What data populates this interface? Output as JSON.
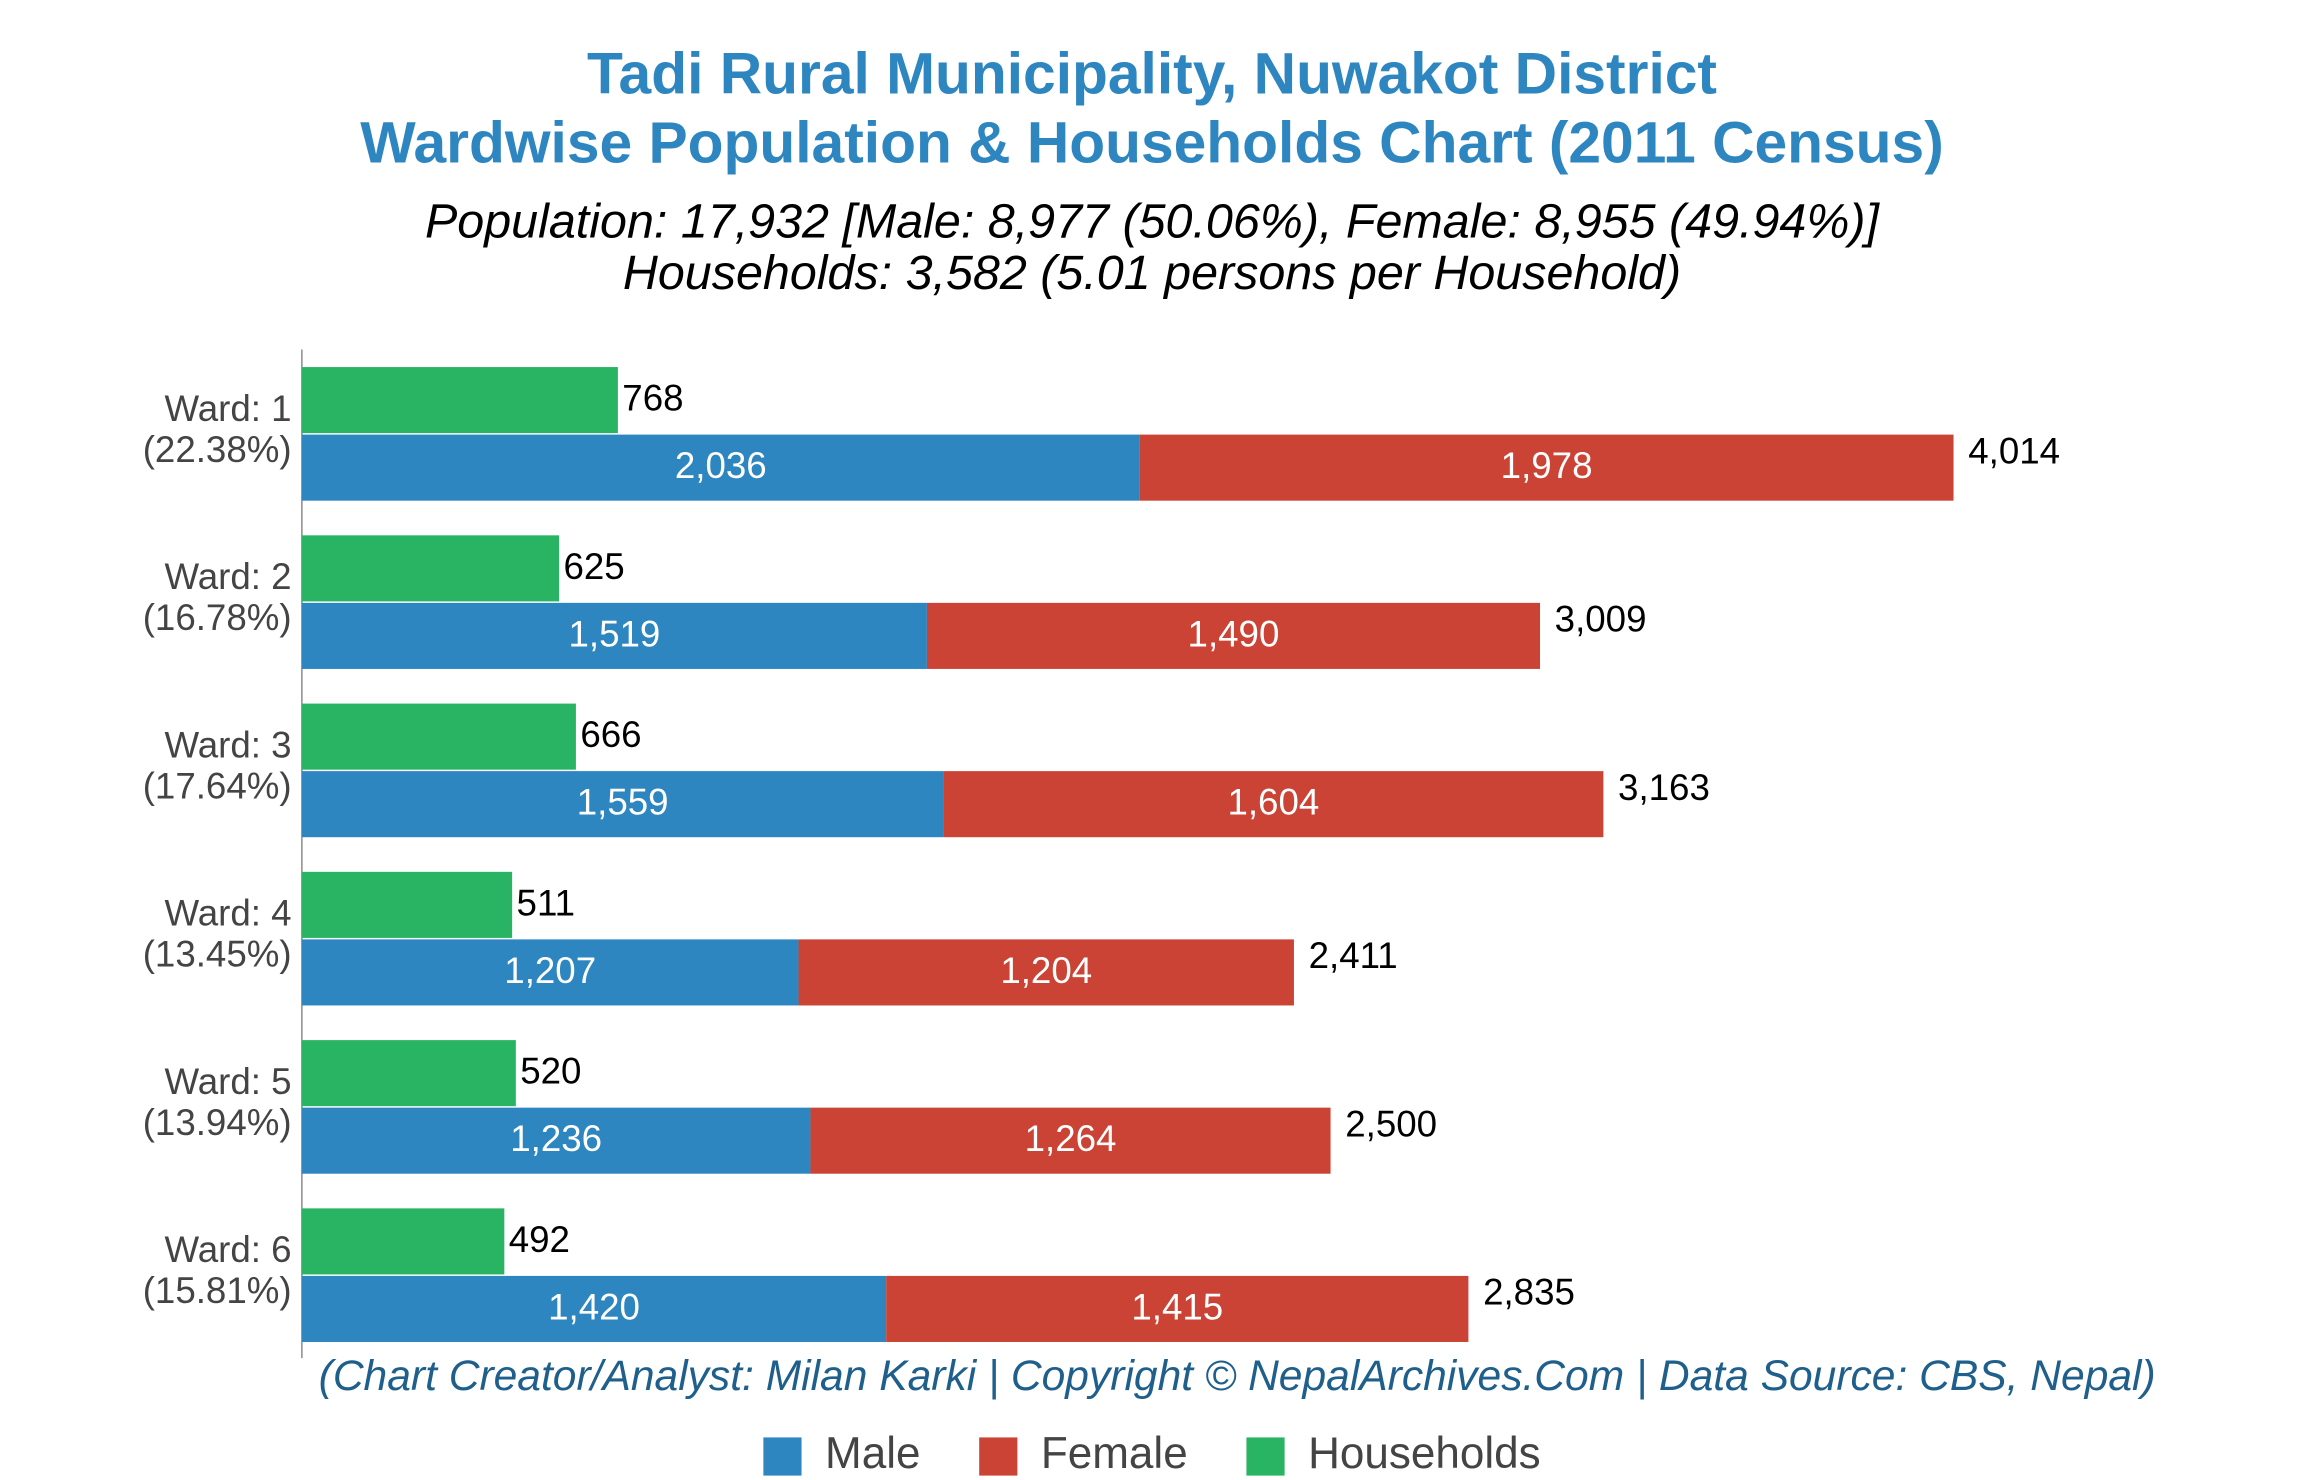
{
  "chart_data": {
    "type": "bar",
    "orientation": "horizontal",
    "title": [
      "Tadi Rural Municipality, Nuwakot District",
      "Wardwise Population & Households Chart (2011 Census)"
    ],
    "subtitle": [
      "Population: 17,932 [Male: 8,977 (50.06%), Female: 8,955 (49.94%)]",
      "Households: 3,582 (5.01 persons per Household)"
    ],
    "note": "(Chart Creator/Analyst: Milan Karki | Copyright © NepalArchives.Com | Data Source: CBS, Nepal)",
    "categories": [
      "Ward: 1",
      "Ward: 2",
      "Ward: 3",
      "Ward: 4",
      "Ward: 5",
      "Ward: 6"
    ],
    "category_shares": [
      22.38,
      16.78,
      17.64,
      13.45,
      13.94,
      15.81
    ],
    "category_share_labels": [
      "(22.38%)",
      "(16.78%)",
      "(17.64%)",
      "(13.45%)",
      "(13.94%)",
      "(15.81%)"
    ],
    "series": [
      {
        "name": "Male",
        "color": "#2e86c1",
        "stack": "population",
        "values": [
          2036,
          1519,
          1559,
          1207,
          1236,
          1420
        ],
        "value_labels": [
          "2,036",
          "1,519",
          "1,559",
          "1,207",
          "1,236",
          "1,420"
        ]
      },
      {
        "name": "Female",
        "color": "#cb4335",
        "stack": "population",
        "values": [
          1978,
          1490,
          1604,
          1204,
          1264,
          1415
        ],
        "value_labels": [
          "1,978",
          "1,490",
          "1,604",
          "1,204",
          "1,264",
          "1,415"
        ]
      },
      {
        "name": "Households",
        "color": "#28b463",
        "stack": "households",
        "values": [
          768,
          625,
          666,
          511,
          520,
          492
        ]
      }
    ],
    "totals": {
      "values": [
        4014,
        3009,
        3163,
        2411,
        2500,
        2835
      ],
      "value_labels": [
        "4,014",
        "3,009",
        "3,163",
        "2,411",
        "2,500",
        "2,835"
      ]
    },
    "xlim": [
      0,
      4860
    ],
    "grid": false,
    "legend": "bottom"
  }
}
